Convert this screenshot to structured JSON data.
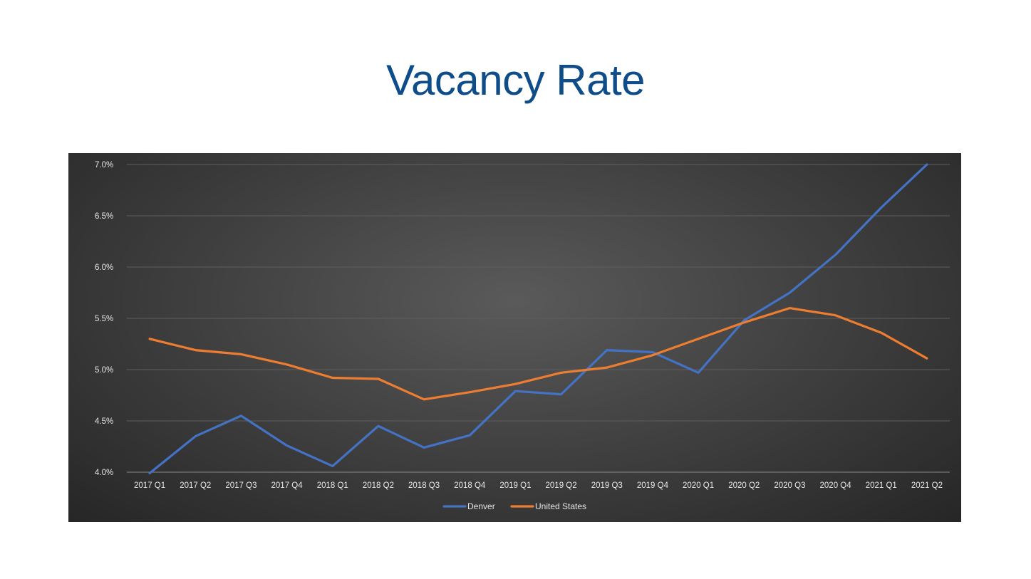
{
  "title": "Vacancy Rate",
  "chart_data": {
    "type": "line",
    "title": "",
    "xlabel": "",
    "ylabel": "",
    "categories": [
      "2017 Q1",
      "2017 Q2",
      "2017 Q3",
      "2017 Q4",
      "2018 Q1",
      "2018 Q2",
      "2018 Q3",
      "2018 Q4",
      "2019 Q1",
      "2019 Q2",
      "2019 Q3",
      "2019 Q4",
      "2020 Q1",
      "2020 Q2",
      "2020 Q3",
      "2020 Q4",
      "2021 Q1",
      "2021 Q2"
    ],
    "ylim": [
      0.04,
      0.07
    ],
    "yticks": [
      0.04,
      0.045,
      0.05,
      0.055,
      0.06,
      0.065,
      0.07
    ],
    "ytick_labels": [
      "4.0%",
      "4.5%",
      "5.0%",
      "5.5%",
      "6.0%",
      "6.5%",
      "7.0%"
    ],
    "grid": true,
    "legend": "bottom",
    "series": [
      {
        "name": "Denver",
        "color": "#4472c4",
        "values": [
          0.0399,
          0.0435,
          0.0455,
          0.0426,
          0.0406,
          0.0445,
          0.0424,
          0.0436,
          0.0479,
          0.0476,
          0.0519,
          0.0517,
          0.0497,
          0.0548,
          0.0575,
          0.0612,
          0.0658,
          0.07
        ]
      },
      {
        "name": "United States",
        "color": "#ed7d31",
        "values": [
          0.053,
          0.0519,
          0.0515,
          0.0505,
          0.0492,
          0.0491,
          0.0471,
          0.0478,
          0.0486,
          0.0497,
          0.0502,
          0.0514,
          0.053,
          0.0546,
          0.056,
          0.0553,
          0.0536,
          0.0511
        ]
      }
    ]
  }
}
